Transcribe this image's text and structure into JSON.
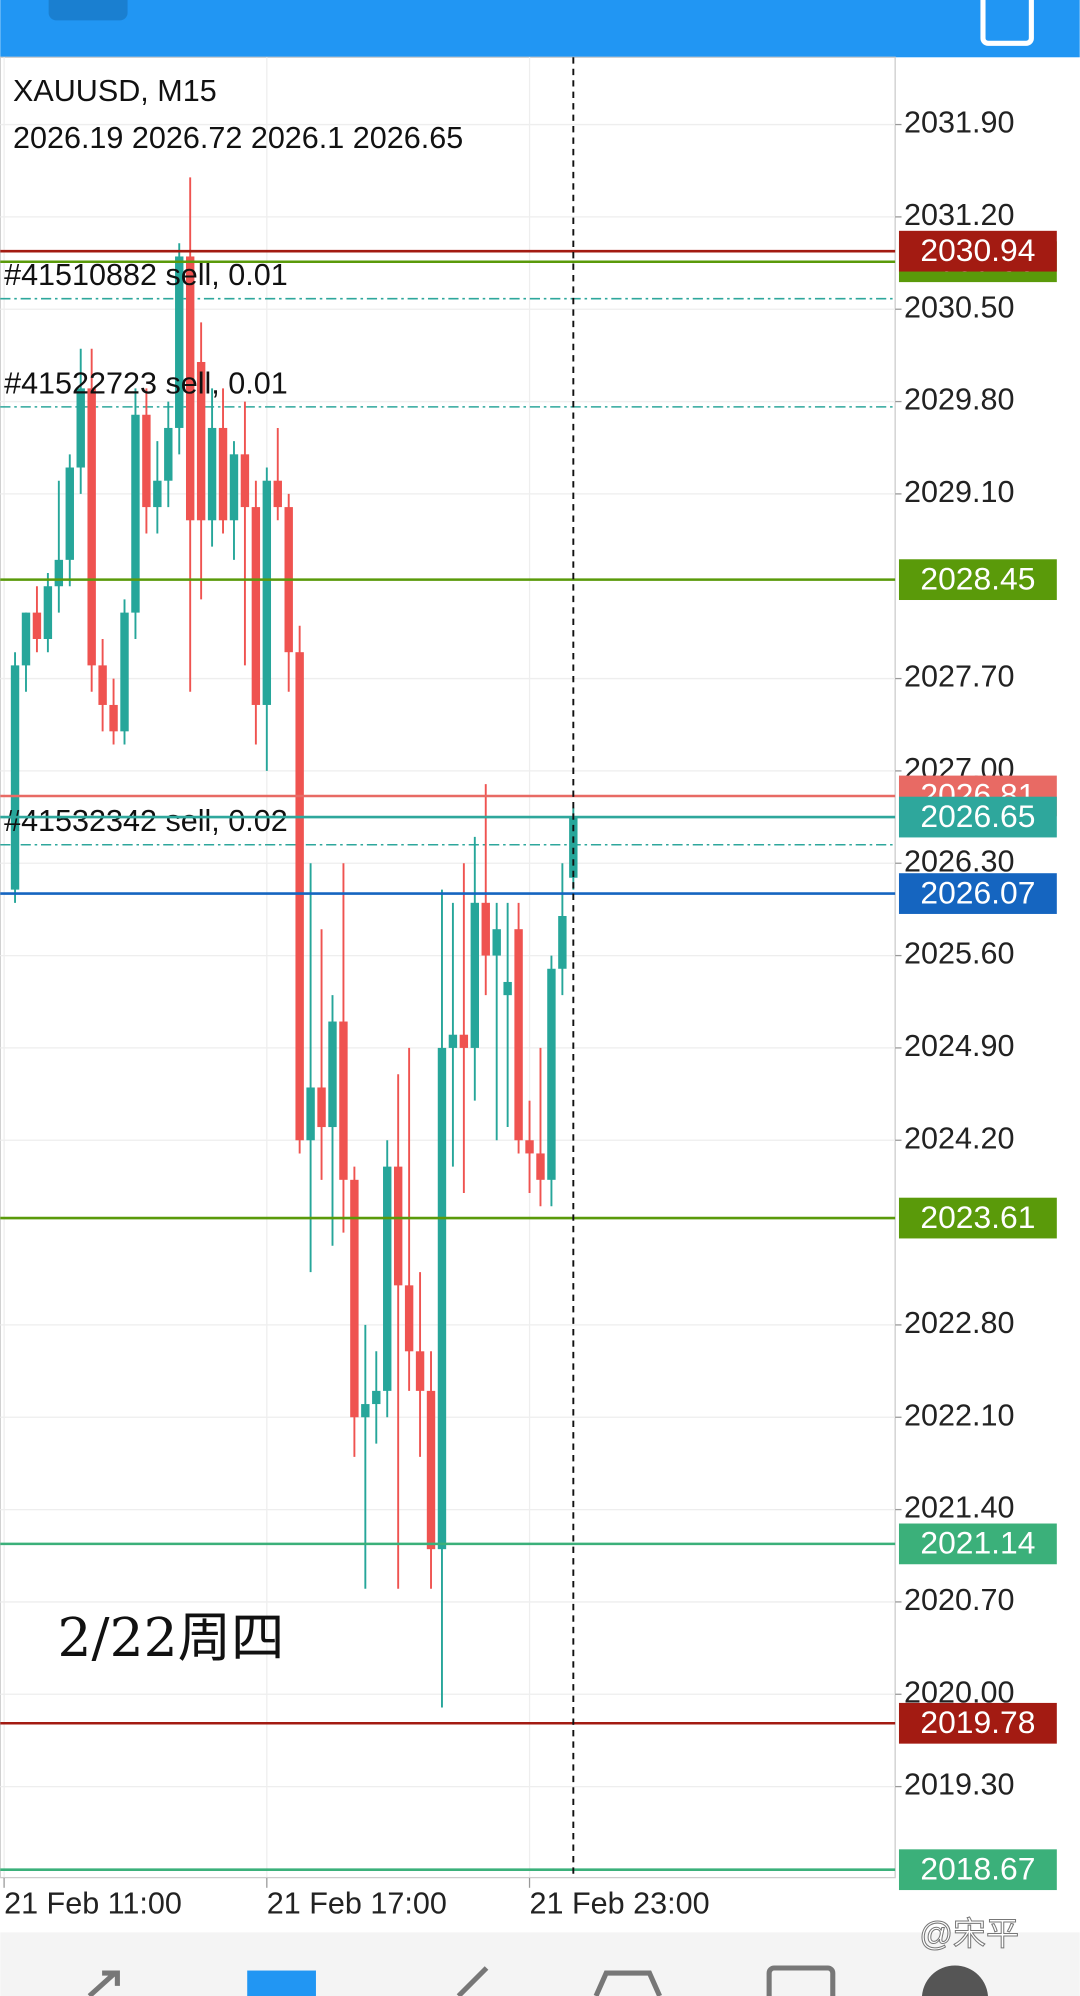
{
  "chart_data": {
    "type": "candlestick",
    "title": "XAUUSD, M15",
    "x": [
      1,
      2,
      3,
      4,
      5,
      6,
      7,
      8,
      9,
      10,
      11,
      12,
      13,
      14,
      15,
      16,
      17,
      18,
      19,
      20,
      21,
      22,
      23,
      24,
      25,
      26,
      27,
      28,
      29,
      30,
      31,
      32,
      33,
      34,
      35,
      36,
      37,
      38,
      39,
      40,
      41,
      42,
      43,
      44,
      45,
      46,
      47,
      48,
      49,
      50,
      51,
      52
    ],
    "open": [
      2026.1,
      2027.8,
      2028.2,
      2028.0,
      2028.4,
      2028.6,
      2029.3,
      2029.9,
      2027.8,
      2027.5,
      2027.3,
      2028.2,
      2029.7,
      2029.0,
      2029.2,
      2029.6,
      2030.9,
      2030.1,
      2028.9,
      2029.6,
      2028.9,
      2029.4,
      2029.0,
      2027.5,
      2029.2,
      2029.0,
      2027.9,
      2024.2,
      2024.6,
      2024.3,
      2025.1,
      2023.9,
      2022.1,
      2022.2,
      2022.3,
      2024.0,
      2023.1,
      2022.6,
      2022.3,
      2021.1,
      2024.9,
      2025.0,
      2024.9,
      2026.0,
      2025.6,
      2025.3,
      2025.8,
      2024.2,
      2024.1,
      2023.9,
      2025.5,
      2026.19
    ],
    "high": [
      2027.9,
      2028.2,
      2028.4,
      2028.5,
      2029.2,
      2029.4,
      2030.2,
      2030.2,
      2028.0,
      2027.7,
      2028.3,
      2029.9,
      2029.9,
      2029.5,
      2029.8,
      2031.0,
      2031.5,
      2030.4,
      2029.9,
      2029.9,
      2029.5,
      2029.8,
      2029.2,
      2029.3,
      2029.6,
      2029.1,
      2028.1,
      2026.3,
      2025.8,
      2025.3,
      2026.3,
      2024.0,
      2022.8,
      2022.6,
      2024.2,
      2024.7,
      2024.9,
      2023.2,
      2022.6,
      2026.1,
      2026.0,
      2026.3,
      2026.5,
      2026.9,
      2026.0,
      2026.0,
      2026.0,
      2024.5,
      2024.9,
      2025.6,
      2026.3,
      2026.72
    ],
    "low": [
      2026.0,
      2027.6,
      2027.9,
      2027.9,
      2028.2,
      2028.4,
      2029.1,
      2027.6,
      2027.3,
      2027.2,
      2027.2,
      2028.0,
      2028.8,
      2028.8,
      2029.0,
      2029.4,
      2027.6,
      2028.3,
      2028.7,
      2028.8,
      2028.6,
      2027.8,
      2027.2,
      2027.0,
      2028.9,
      2027.6,
      2024.1,
      2023.2,
      2023.9,
      2023.4,
      2023.5,
      2021.8,
      2020.8,
      2021.9,
      2022.1,
      2020.8,
      2022.3,
      2021.8,
      2020.8,
      2019.9,
      2024.0,
      2023.8,
      2024.5,
      2025.3,
      2024.2,
      2024.3,
      2024.1,
      2023.8,
      2023.7,
      2023.7,
      2025.3,
      2026.1
    ],
    "close": [
      2027.8,
      2028.2,
      2028.0,
      2028.4,
      2028.6,
      2029.3,
      2029.9,
      2027.8,
      2027.5,
      2027.3,
      2028.2,
      2029.7,
      2029.0,
      2029.2,
      2029.6,
      2030.9,
      2028.9,
      2028.9,
      2029.6,
      2028.9,
      2029.4,
      2029.0,
      2027.5,
      2029.2,
      2029.0,
      2027.9,
      2024.2,
      2024.6,
      2024.3,
      2025.1,
      2023.9,
      2022.1,
      2022.2,
      2022.3,
      2024.0,
      2023.1,
      2022.6,
      2022.3,
      2021.1,
      2024.9,
      2025.0,
      2024.9,
      2026.0,
      2025.6,
      2025.8,
      2025.4,
      2024.2,
      2024.1,
      2023.9,
      2025.5,
      2025.9,
      2026.65
    ],
    "up_color": "#26a69a",
    "down_color": "#ef5350",
    "ylim": [
      2018.61,
      2032.41
    ],
    "yticks": [
      {
        "value": 2031.9,
        "label": "2031.90"
      },
      {
        "value": 2031.2,
        "label": "2031.20"
      },
      {
        "value": 2030.5,
        "label": "2030.50"
      },
      {
        "value": 2029.8,
        "label": "2029.80"
      },
      {
        "value": 2029.1,
        "label": "2029.10"
      },
      {
        "value": 2027.7,
        "label": "2027.70"
      },
      {
        "value": 2027.0,
        "label": "2027.00"
      },
      {
        "value": 2026.3,
        "label": "2026.30"
      },
      {
        "value": 2025.6,
        "label": "2025.60"
      },
      {
        "value": 2024.9,
        "label": "2024.90"
      },
      {
        "value": 2024.2,
        "label": "2024.20"
      },
      {
        "value": 2022.8,
        "label": "2022.80"
      },
      {
        "value": 2022.1,
        "label": "2022.10"
      },
      {
        "value": 2021.4,
        "label": "2021.40"
      },
      {
        "value": 2020.7,
        "label": "2020.70"
      },
      {
        "value": 2020.0,
        "label": "2020.00"
      },
      {
        "value": 2019.3,
        "label": "2019.30"
      }
    ],
    "xlim": [
      -0.35,
      81.4
    ],
    "xticks": [
      {
        "value": 0,
        "label": "21 Feb 11:00"
      },
      {
        "value": 24,
        "label": "21 Feb 17:00"
      },
      {
        "value": 48,
        "label": "21 Feb 23:00"
      }
    ],
    "grid": true,
    "crosshair_x": 52,
    "levels": [
      {
        "value": 2030.86,
        "color": "#5a9a0a"
      },
      {
        "value": 2030.94,
        "color": "#a31b12"
      },
      {
        "value": 2028.45,
        "color": "#5a9a0a"
      },
      {
        "value": 2026.81,
        "color": "#e86a64"
      },
      {
        "value": 2026.65,
        "color": "#2ea79c"
      },
      {
        "value": 2026.07,
        "color": "#1565c0"
      },
      {
        "value": 2023.61,
        "color": "#5a9a0a"
      },
      {
        "value": 2021.14,
        "color": "#3bb07a"
      },
      {
        "value": 2019.78,
        "color": "#a31b12"
      },
      {
        "value": 2018.67,
        "color": "#3bb07a"
      }
    ],
    "orders": [
      {
        "label": "#41510882 sell, 0.01",
        "value": 2030.58
      },
      {
        "label": "#41522723 sell, 0.01",
        "value": 2029.76
      },
      {
        "label": "#41532342 sell, 0.02",
        "value": 2026.44
      }
    ],
    "annotation": "2/22周四",
    "watermark": "@宋平"
  }
}
